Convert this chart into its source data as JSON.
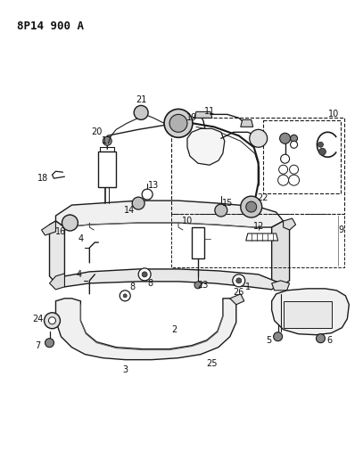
{
  "title": "8P14 900 A",
  "bg_color": "#ffffff",
  "line_color": "#1a1a1a",
  "label_color": "#111111",
  "fig_width": 4.07,
  "fig_height": 5.33,
  "dpi": 100
}
